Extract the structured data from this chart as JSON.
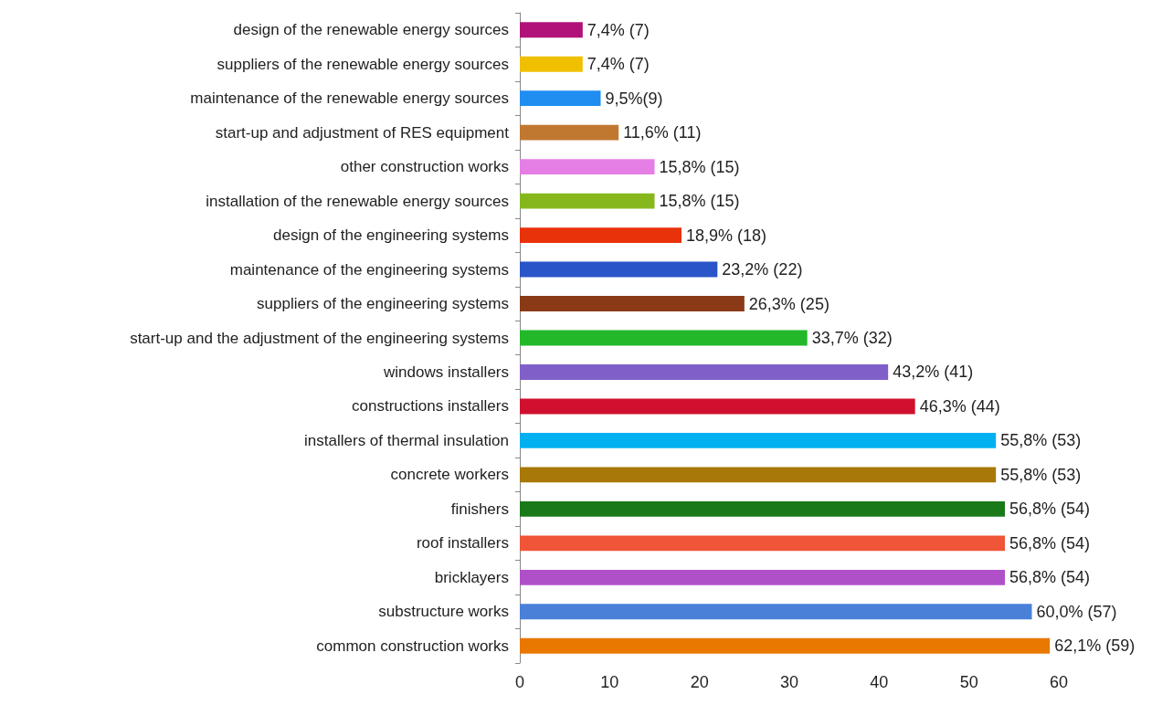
{
  "chart_data": {
    "type": "bar",
    "orientation": "horizontal",
    "categories": [
      "design of the renewable energy sources",
      "suppliers of the renewable energy sources",
      "maintenance of the renewable energy sources",
      "start-up and adjustment of RES equipment",
      "other construction works",
      "installation of the renewable energy sources",
      "design of the engineering systems",
      "maintenance of the engineering systems",
      "suppliers of the engineering systems",
      "start-up and the adjustment of the engineering systems",
      "windows installers",
      "constructions installers",
      "installers of thermal insulation",
      "concrete workers",
      "finishers",
      "roof installers",
      "bricklayers",
      "substructure works",
      "common construction works"
    ],
    "values": [
      7,
      7,
      9,
      11,
      15,
      15,
      18,
      22,
      25,
      32,
      41,
      44,
      53,
      53,
      54,
      54,
      54,
      57,
      59
    ],
    "value_labels": [
      "7,4% (7)",
      "7,4% (7)",
      "9,5%(9)",
      "11,6% (11)",
      "15,8% (15)",
      "15,8% (15)",
      "18,9% (18)",
      "23,2% (22)",
      "26,3% (25)",
      "33,7% (32)",
      "43,2% (41)",
      "46,3% (44)",
      "55,8% (53)",
      "55,8% (53)",
      "56,8% (54)",
      "56,8% (54)",
      "56,8% (54)",
      "60,0% (57)",
      "62,1% (59)"
    ],
    "colors": [
      "#b0127a",
      "#f0c000",
      "#1f8ef0",
      "#c07830",
      "#e57ee5",
      "#86b81e",
      "#e8320a",
      "#2a55c8",
      "#8b3a18",
      "#22b82a",
      "#8060c8",
      "#d0102e",
      "#00b0f0",
      "#a87808",
      "#1a7a1a",
      "#f05538",
      "#b050c8",
      "#4a80d8",
      "#e87800"
    ],
    "xlim": [
      0,
      60
    ],
    "xticks": [
      0,
      10,
      20,
      30,
      40,
      50,
      60
    ],
    "grid": false
  }
}
